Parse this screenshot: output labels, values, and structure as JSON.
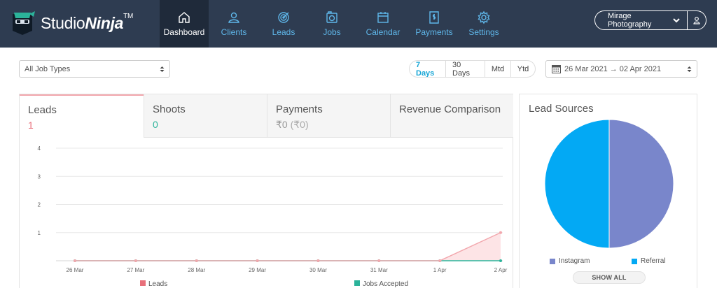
{
  "app": {
    "brand_prefix": "Studio",
    "brand_suffix": "Ninja",
    "trademark": "TM"
  },
  "nav": {
    "items": [
      {
        "label": "Dashboard",
        "icon": "home-icon"
      },
      {
        "label": "Clients",
        "icon": "users-icon"
      },
      {
        "label": "Leads",
        "icon": "target-icon"
      },
      {
        "label": "Jobs",
        "icon": "camera-icon"
      },
      {
        "label": "Calendar",
        "icon": "calendar-icon"
      },
      {
        "label": "Payments",
        "icon": "invoice-icon"
      },
      {
        "label": "Settings",
        "icon": "gear-icon"
      }
    ],
    "active": "Dashboard"
  },
  "account": {
    "name": "Mirage Photography"
  },
  "filters": {
    "job_types": "All Job Types",
    "ranges": [
      "7 Days",
      "30 Days",
      "Mtd",
      "Ytd"
    ],
    "selected_range": "7 Days",
    "date_from": "26 Mar 2021",
    "arrow": "→",
    "date_to": "02 Apr 2021"
  },
  "tabs": [
    {
      "label": "Leads",
      "value": "1",
      "color": "#e8707b"
    },
    {
      "label": "Shoots",
      "value": "0",
      "color": "#2bb39a"
    },
    {
      "label": "Payments",
      "value": "₹0",
      "sub": "(₹0)",
      "color": "#999999"
    },
    {
      "label": "Revenue Comparison",
      "value": ""
    }
  ],
  "chart_data": {
    "type": "line",
    "categories": [
      "26 Mar",
      "27 Mar",
      "28 Mar",
      "29 Mar",
      "30 Mar",
      "31 Mar",
      "1 Apr",
      "2 Apr"
    ],
    "series": [
      {
        "name": "Leads",
        "values": [
          0,
          0,
          0,
          0,
          0,
          0,
          0,
          1
        ],
        "color": "#f2a7ad",
        "fill": "#fde4e6",
        "area": true
      },
      {
        "name": "Jobs Accepted",
        "values": [
          0,
          0,
          0,
          0,
          0,
          0,
          0,
          0
        ],
        "color": "#2bb39a"
      }
    ],
    "yticks": [
      1,
      2,
      3,
      4
    ],
    "ylim": [
      0,
      4
    ],
    "grid": true,
    "legend_position": "bottom"
  },
  "lead_sources": {
    "title": "Lead Sources",
    "chart_data": {
      "type": "pie",
      "labels": [
        "Instagram",
        "Referral"
      ],
      "values": [
        50,
        50
      ],
      "colors": [
        "#7986cb",
        "#03a9f4"
      ]
    },
    "show_all": "SHOW ALL"
  }
}
